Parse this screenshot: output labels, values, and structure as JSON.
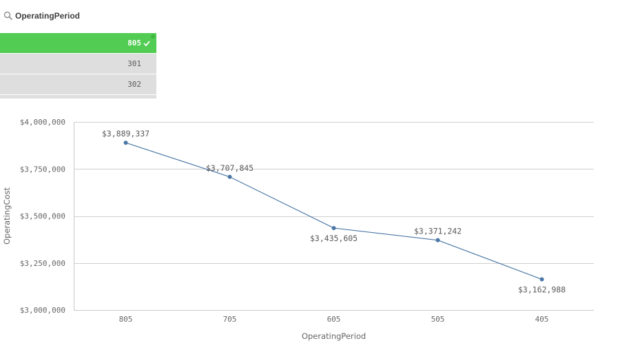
{
  "filter": {
    "title": "OperatingPeriod",
    "items": [
      {
        "label": "805",
        "selected": true
      },
      {
        "label": "301",
        "selected": false
      },
      {
        "label": "302",
        "selected": false
      }
    ],
    "selected_color": "#52cc52",
    "unselected_color": "#dedede"
  },
  "chart_data": {
    "type": "line",
    "categories": [
      "805",
      "705",
      "605",
      "505",
      "405"
    ],
    "series": [
      {
        "values": [
          3889337,
          3707845,
          3435605,
          3371242,
          3162988
        ]
      }
    ],
    "data_labels": [
      "$3,889,337",
      "$3,707,845",
      "$3,435,605",
      "$3,371,242",
      "$3,162,988"
    ],
    "xlabel": "OperatingPeriod",
    "ylabel": "OperatingCost",
    "ylim": [
      3000000,
      4000000
    ],
    "yticks": [
      4000000,
      3750000,
      3500000,
      3250000,
      3000000
    ],
    "ytick_labels": [
      "$4,000,000",
      "$3,750,000",
      "$3,500,000",
      "$3,250,000",
      "$3,000,000"
    ],
    "grid": true,
    "line_color": "#4a77a6"
  }
}
